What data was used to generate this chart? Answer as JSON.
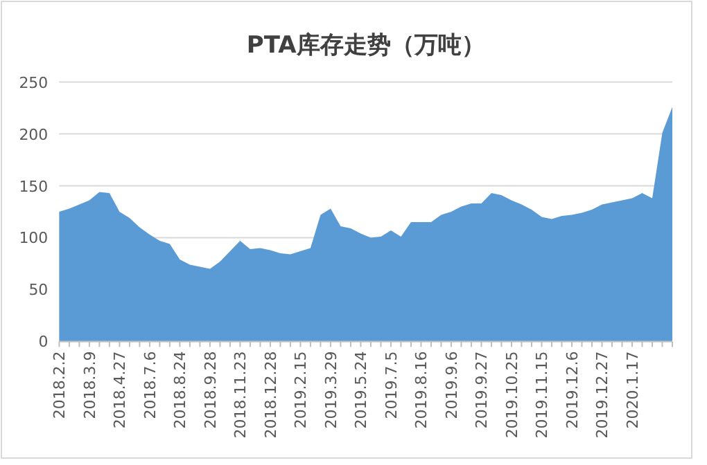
{
  "chart_data": {
    "type": "area",
    "title": "PTA库存走势（万吨）",
    "categories": [
      "2018.2.2",
      null,
      null,
      "2018.3.9",
      null,
      null,
      "2018.4.27",
      null,
      null,
      "2018.7.6",
      null,
      null,
      "2018.8.24",
      null,
      null,
      "2018.9.28",
      null,
      null,
      "2018.11.23",
      null,
      null,
      "2018.12.28",
      null,
      null,
      "2019.2.15",
      null,
      null,
      "2019.3.29",
      null,
      null,
      "2019.5.24",
      null,
      null,
      "2019.7.5",
      null,
      null,
      "2019.8.16",
      null,
      null,
      "2019.9.6",
      null,
      null,
      "2019.9.27",
      null,
      null,
      "2019.10.25",
      null,
      null,
      "2019.11.15",
      null,
      null,
      "2019.12.6",
      null,
      null,
      "2019.12.27",
      null,
      null,
      "2020.1.17",
      null,
      null,
      null,
      null
    ],
    "series": [
      {
        "color": "#5b9bd5",
        "values": [
          125,
          128,
          132,
          136,
          144,
          143,
          125,
          119,
          110,
          103,
          97,
          94,
          79,
          74,
          72,
          70,
          77,
          87,
          97,
          89,
          90,
          88,
          85,
          84,
          87,
          90,
          122,
          128,
          111,
          109,
          104,
          100,
          101,
          107,
          101,
          115,
          115,
          115,
          122,
          125,
          130,
          133,
          133,
          143,
          141,
          136,
          132,
          127,
          120,
          118,
          121,
          122,
          124,
          127,
          132,
          134,
          136,
          138,
          143,
          138,
          201,
          226
        ]
      }
    ],
    "ylim": [
      0,
      250
    ],
    "yticks": [
      0,
      50,
      100,
      150,
      200,
      250
    ],
    "grid": "y"
  }
}
